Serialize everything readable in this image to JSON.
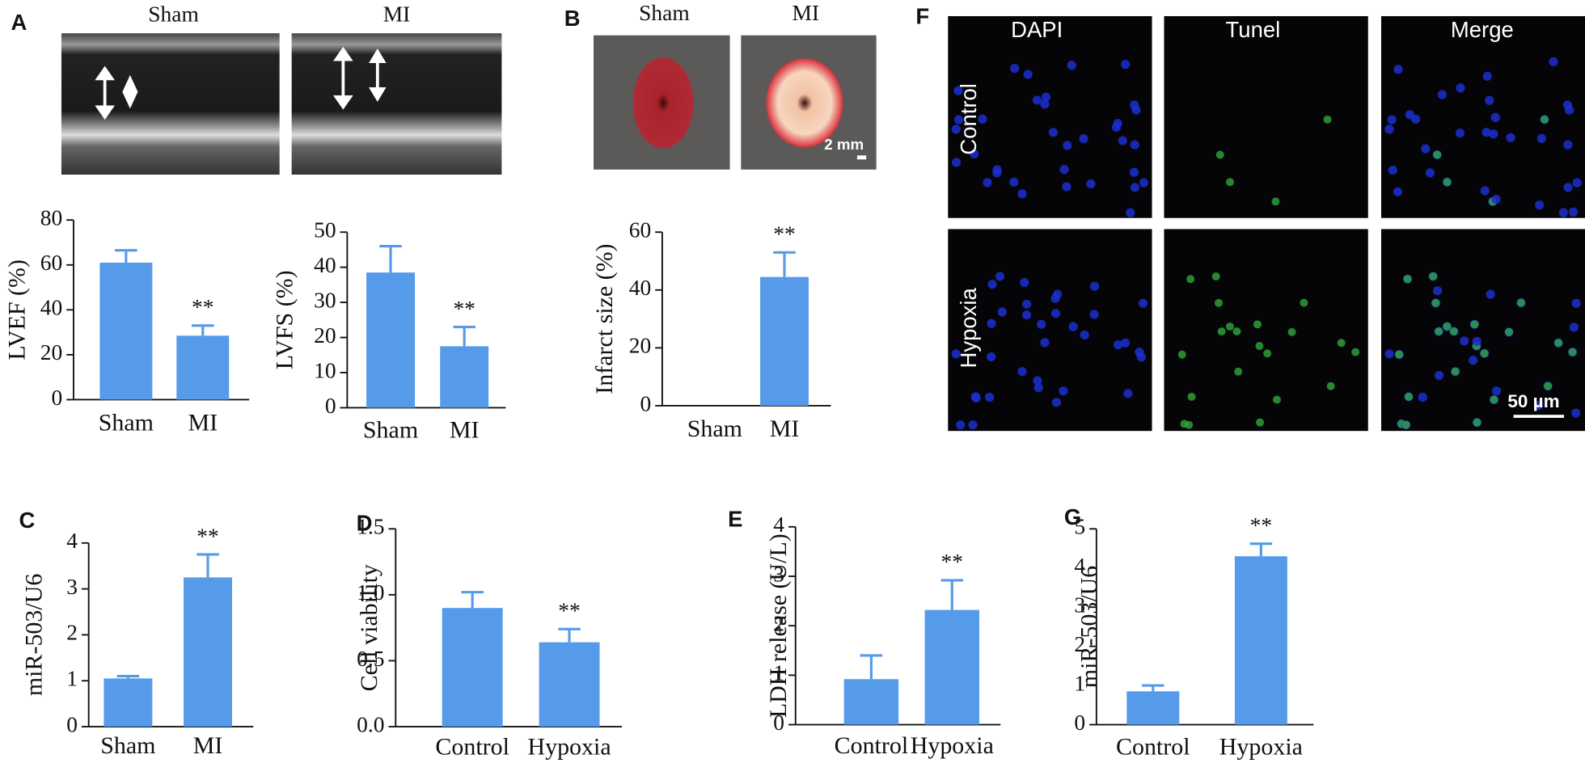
{
  "figures": {
    "A": {
      "label": "A",
      "columns": [
        "Sham",
        "MI"
      ]
    },
    "B": {
      "label": "B",
      "columns": [
        "Sham",
        "MI"
      ],
      "scale_bar": "2 mm"
    },
    "F": {
      "label": "F",
      "columns": [
        "DAPI",
        "Tunel",
        "Merge"
      ],
      "rows": [
        "Control",
        "Hypoxia"
      ],
      "scale_bar": "50 µm"
    }
  },
  "chart_data": [
    {
      "type": "bar",
      "ylabel": "LVEF (%)",
      "categories": [
        "Sham",
        "MI"
      ],
      "values": [
        61,
        28.5
      ],
      "error": [
        5.5,
        4.5
      ],
      "annotations": [
        null,
        "**"
      ],
      "color": "#559bea",
      "ylim": [
        0,
        80
      ],
      "yticks": [
        0,
        20,
        40,
        60,
        80
      ]
    },
    {
      "type": "bar",
      "ylabel": "LVFS (%)",
      "categories": [
        "Sham",
        "MI"
      ],
      "values": [
        38.5,
        17.5
      ],
      "error": [
        7.5,
        5.5
      ],
      "annotations": [
        null,
        "**"
      ],
      "color": "#559bea",
      "ylim": [
        0,
        50
      ],
      "yticks": [
        0,
        10,
        20,
        30,
        40,
        50
      ]
    },
    {
      "type": "bar",
      "ylabel": "Infarct size (%)",
      "categories": [
        "Sham",
        "MI"
      ],
      "values": [
        0,
        44.5
      ],
      "error": [
        null,
        8.5
      ],
      "annotations": [
        null,
        "**"
      ],
      "color": "#559bea",
      "ylim": [
        0,
        60
      ],
      "yticks": [
        0,
        20,
        40,
        60
      ]
    },
    {
      "type": "bar",
      "panel": "C",
      "ylabel": "miR-503/U6",
      "categories": [
        "Sham",
        "MI"
      ],
      "values": [
        1.05,
        3.25
      ],
      "error": [
        0.05,
        0.5
      ],
      "annotations": [
        null,
        "**"
      ],
      "color": "#559bea",
      "ylim": [
        0,
        4
      ],
      "yticks": [
        0,
        1,
        2,
        3,
        4
      ]
    },
    {
      "type": "bar",
      "panel": "D",
      "ylabel": "Cell viability",
      "categories": [
        "Control",
        "Hypoxia"
      ],
      "values": [
        0.9,
        0.64
      ],
      "error": [
        0.12,
        0.1
      ],
      "annotations": [
        null,
        "**"
      ],
      "color": "#559bea",
      "ylim": [
        0,
        1.5
      ],
      "yticks": [
        {
          "value": 0,
          "label": "0.0"
        },
        0.5,
        {
          "value": 1,
          "label": "1.0"
        },
        1.5
      ]
    },
    {
      "type": "bar",
      "panel": "E",
      "ylabel": "LDH release (U/L)",
      "categories": [
        "Control",
        "Hypoxia"
      ],
      "values": [
        0.92,
        2.32
      ],
      "error": [
        0.48,
        0.6
      ],
      "annotations": [
        null,
        "**"
      ],
      "color": "#559bea",
      "ylim": [
        0,
        4
      ],
      "yticks": [
        0,
        1,
        2,
        3,
        4
      ]
    },
    {
      "type": "bar",
      "panel": "G",
      "ylabel": "miR-503/U6",
      "categories": [
        "Control",
        "Hypoxia"
      ],
      "values": [
        0.85,
        4.3
      ],
      "error": [
        0.15,
        0.32
      ],
      "annotations": [
        null,
        "**"
      ],
      "color": "#559bea",
      "ylim": [
        0,
        5
      ],
      "yticks": [
        0,
        1,
        2,
        3,
        4,
        5
      ]
    }
  ]
}
